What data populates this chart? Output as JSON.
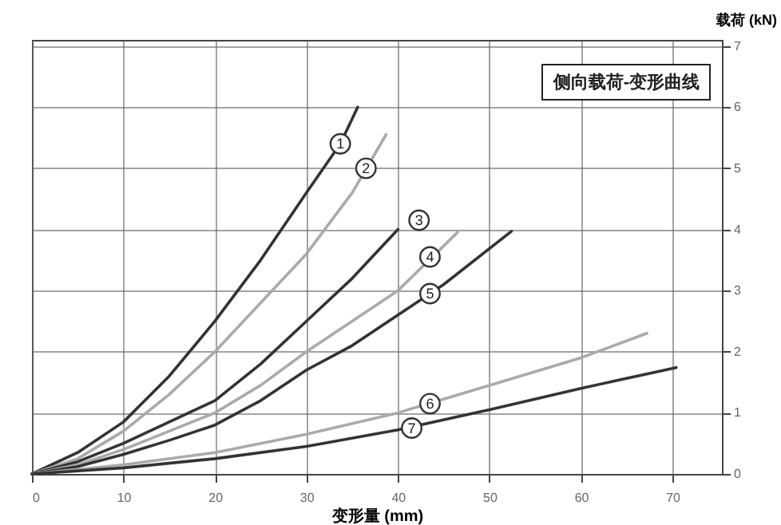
{
  "chart_data": {
    "type": "line",
    "title": "侧向载荷-变形曲线",
    "xlabel": "变形量 (mm)",
    "ylabel": "载荷 (kN)",
    "xlim": [
      0,
      75.4
    ],
    "ylim": [
      0,
      7.1
    ],
    "xticks": [
      0,
      10,
      20,
      30,
      40,
      50,
      60,
      70
    ],
    "yticks": [
      0,
      1,
      2,
      3,
      4,
      5,
      6,
      7
    ],
    "grid": true,
    "marker": "none",
    "line_style": "solid",
    "series": [
      {
        "color": "#333333",
        "x": [
          0,
          5,
          10,
          15,
          20,
          25,
          30,
          33.7,
          35.6
        ],
        "values": [
          0,
          0.35,
          0.85,
          1.6,
          2.5,
          3.5,
          4.6,
          5.4,
          6.0
        ]
      },
      {
        "color": "#aaaaaa",
        "x": [
          0,
          5,
          10,
          15,
          20,
          25,
          30,
          35,
          38.7
        ],
        "values": [
          0,
          0.25,
          0.7,
          1.3,
          2.0,
          2.8,
          3.6,
          4.6,
          5.55
        ]
      },
      {
        "color": "#333333",
        "x": [
          0,
          5,
          10,
          15,
          20,
          25,
          30,
          35,
          40
        ],
        "values": [
          0,
          0.2,
          0.5,
          0.85,
          1.2,
          1.8,
          2.5,
          3.2,
          4.0
        ]
      },
      {
        "color": "#aaaaaa",
        "x": [
          0,
          5,
          10,
          15,
          20,
          25,
          30,
          35,
          40,
          46.5
        ],
        "values": [
          0,
          0.15,
          0.4,
          0.7,
          1.0,
          1.45,
          2.0,
          2.5,
          3.0,
          3.95
        ]
      },
      {
        "color": "#333333",
        "x": [
          0,
          5,
          10,
          15,
          20,
          25,
          30,
          35,
          40,
          45,
          52.4
        ],
        "values": [
          0,
          0.12,
          0.32,
          0.55,
          0.8,
          1.2,
          1.7,
          2.1,
          2.6,
          3.1,
          3.97
        ]
      },
      {
        "color": "#aaaaaa",
        "x": [
          0,
          10,
          20,
          30,
          40,
          50,
          60,
          67.2
        ],
        "values": [
          0,
          0.15,
          0.35,
          0.65,
          1.0,
          1.45,
          1.9,
          2.3
        ]
      },
      {
        "color": "#333333",
        "x": [
          0,
          10,
          20,
          30,
          40,
          50,
          60,
          70.4
        ],
        "values": [
          0,
          0.1,
          0.25,
          0.45,
          0.72,
          1.05,
          1.4,
          1.74
        ]
      }
    ],
    "annotations": [
      {
        "text": "1",
        "x": 33.7,
        "y": 5.4
      },
      {
        "text": "2",
        "x": 36.5,
        "y": 5.0
      },
      {
        "text": "3",
        "x": 42.3,
        "y": 4.15
      },
      {
        "text": "4",
        "x": 43.5,
        "y": 3.55
      },
      {
        "text": "5",
        "x": 43.5,
        "y": 2.95
      },
      {
        "text": "6",
        "x": 43.5,
        "y": 1.15
      },
      {
        "text": "7",
        "x": 41.5,
        "y": 0.75
      }
    ]
  }
}
